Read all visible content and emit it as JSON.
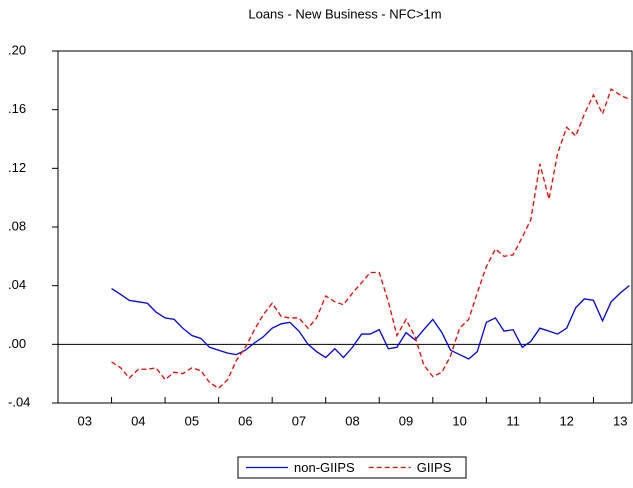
{
  "chart_data": {
    "type": "line",
    "title": "Loans - New Business - NFC>1m",
    "x": [
      2004,
      2004.17,
      2004.33,
      2004.5,
      2004.67,
      2004.83,
      2005,
      2005.17,
      2005.33,
      2005.5,
      2005.67,
      2005.83,
      2006,
      2006.17,
      2006.33,
      2006.5,
      2006.67,
      2006.83,
      2007,
      2007.17,
      2007.33,
      2007.5,
      2007.67,
      2007.83,
      2008,
      2008.17,
      2008.33,
      2008.5,
      2008.67,
      2008.83,
      2009,
      2009.17,
      2009.33,
      2009.5,
      2009.67,
      2009.83,
      2010,
      2010.17,
      2010.33,
      2010.5,
      2010.67,
      2010.83,
      2011,
      2011.17,
      2011.33,
      2011.5,
      2011.67,
      2011.83,
      2012,
      2012.17,
      2012.33,
      2012.5,
      2012.67,
      2012.83,
      2013,
      2013.17,
      2013.33,
      2013.5,
      2013.67
    ],
    "series": [
      {
        "name": "non-GIIPS",
        "color": "#0000ff",
        "dash": false,
        "values": [
          0.038,
          0.034,
          0.03,
          0.029,
          0.028,
          0.022,
          0.018,
          0.017,
          0.011,
          0.006,
          0.004,
          -0.002,
          -0.004,
          -0.006,
          -0.007,
          -0.004,
          0.001,
          0.005,
          0.011,
          0.014,
          0.015,
          0.009,
          0.0,
          -0.005,
          -0.009,
          -0.003,
          -0.009,
          -0.002,
          0.007,
          0.007,
          0.01,
          -0.003,
          -0.002,
          0.008,
          0.003,
          0.01,
          0.017,
          0.008,
          -0.004,
          -0.007,
          -0.01,
          -0.005,
          0.015,
          0.018,
          0.009,
          0.01,
          -0.002,
          0.002,
          0.011,
          0.009,
          0.007,
          0.011,
          0.025,
          0.031,
          0.03,
          0.016,
          0.029,
          0.035,
          0.04
        ]
      },
      {
        "name": "GIIPS",
        "color": "#ff0000",
        "dash": true,
        "values": [
          -0.012,
          -0.016,
          -0.023,
          -0.017,
          -0.017,
          -0.016,
          -0.024,
          -0.019,
          -0.02,
          -0.016,
          -0.018,
          -0.026,
          -0.03,
          -0.024,
          -0.011,
          -0.002,
          0.01,
          0.02,
          0.028,
          0.019,
          0.018,
          0.018,
          0.011,
          0.018,
          0.033,
          0.029,
          0.027,
          0.035,
          0.042,
          0.049,
          0.049,
          0.029,
          0.006,
          0.017,
          0.005,
          -0.014,
          -0.022,
          -0.019,
          -0.008,
          0.011,
          0.017,
          0.035,
          0.053,
          0.065,
          0.06,
          0.061,
          0.073,
          0.085,
          0.123,
          0.099,
          0.13,
          0.148,
          0.142,
          0.157,
          0.17,
          0.157,
          0.174,
          0.17,
          0.167
        ]
      }
    ],
    "xlim": [
      2003,
      2013.72
    ],
    "xticks": [
      {
        "value": 2003,
        "label": "03"
      },
      {
        "value": 2004,
        "label": "04"
      },
      {
        "value": 2005,
        "label": "05"
      },
      {
        "value": 2006,
        "label": "06"
      },
      {
        "value": 2007,
        "label": "07"
      },
      {
        "value": 2008,
        "label": "08"
      },
      {
        "value": 2009,
        "label": "09"
      },
      {
        "value": 2010,
        "label": "10"
      },
      {
        "value": 2011,
        "label": "11"
      },
      {
        "value": 2012,
        "label": "12"
      },
      {
        "value": 2013,
        "label": "13"
      }
    ],
    "ylim": [
      -0.04,
      0.2
    ],
    "yticks": [
      {
        "value": -0.04,
        "label": "-.04"
      },
      {
        "value": 0,
        "label": ".00"
      },
      {
        "value": 0.04,
        "label": ".04"
      },
      {
        "value": 0.08,
        "label": ".08"
      },
      {
        "value": 0.12,
        "label": ".12"
      },
      {
        "value": 0.16,
        "label": ".16"
      },
      {
        "value": 0.2,
        "label": ".20"
      }
    ],
    "zero_line": true,
    "legend": "bottom"
  }
}
